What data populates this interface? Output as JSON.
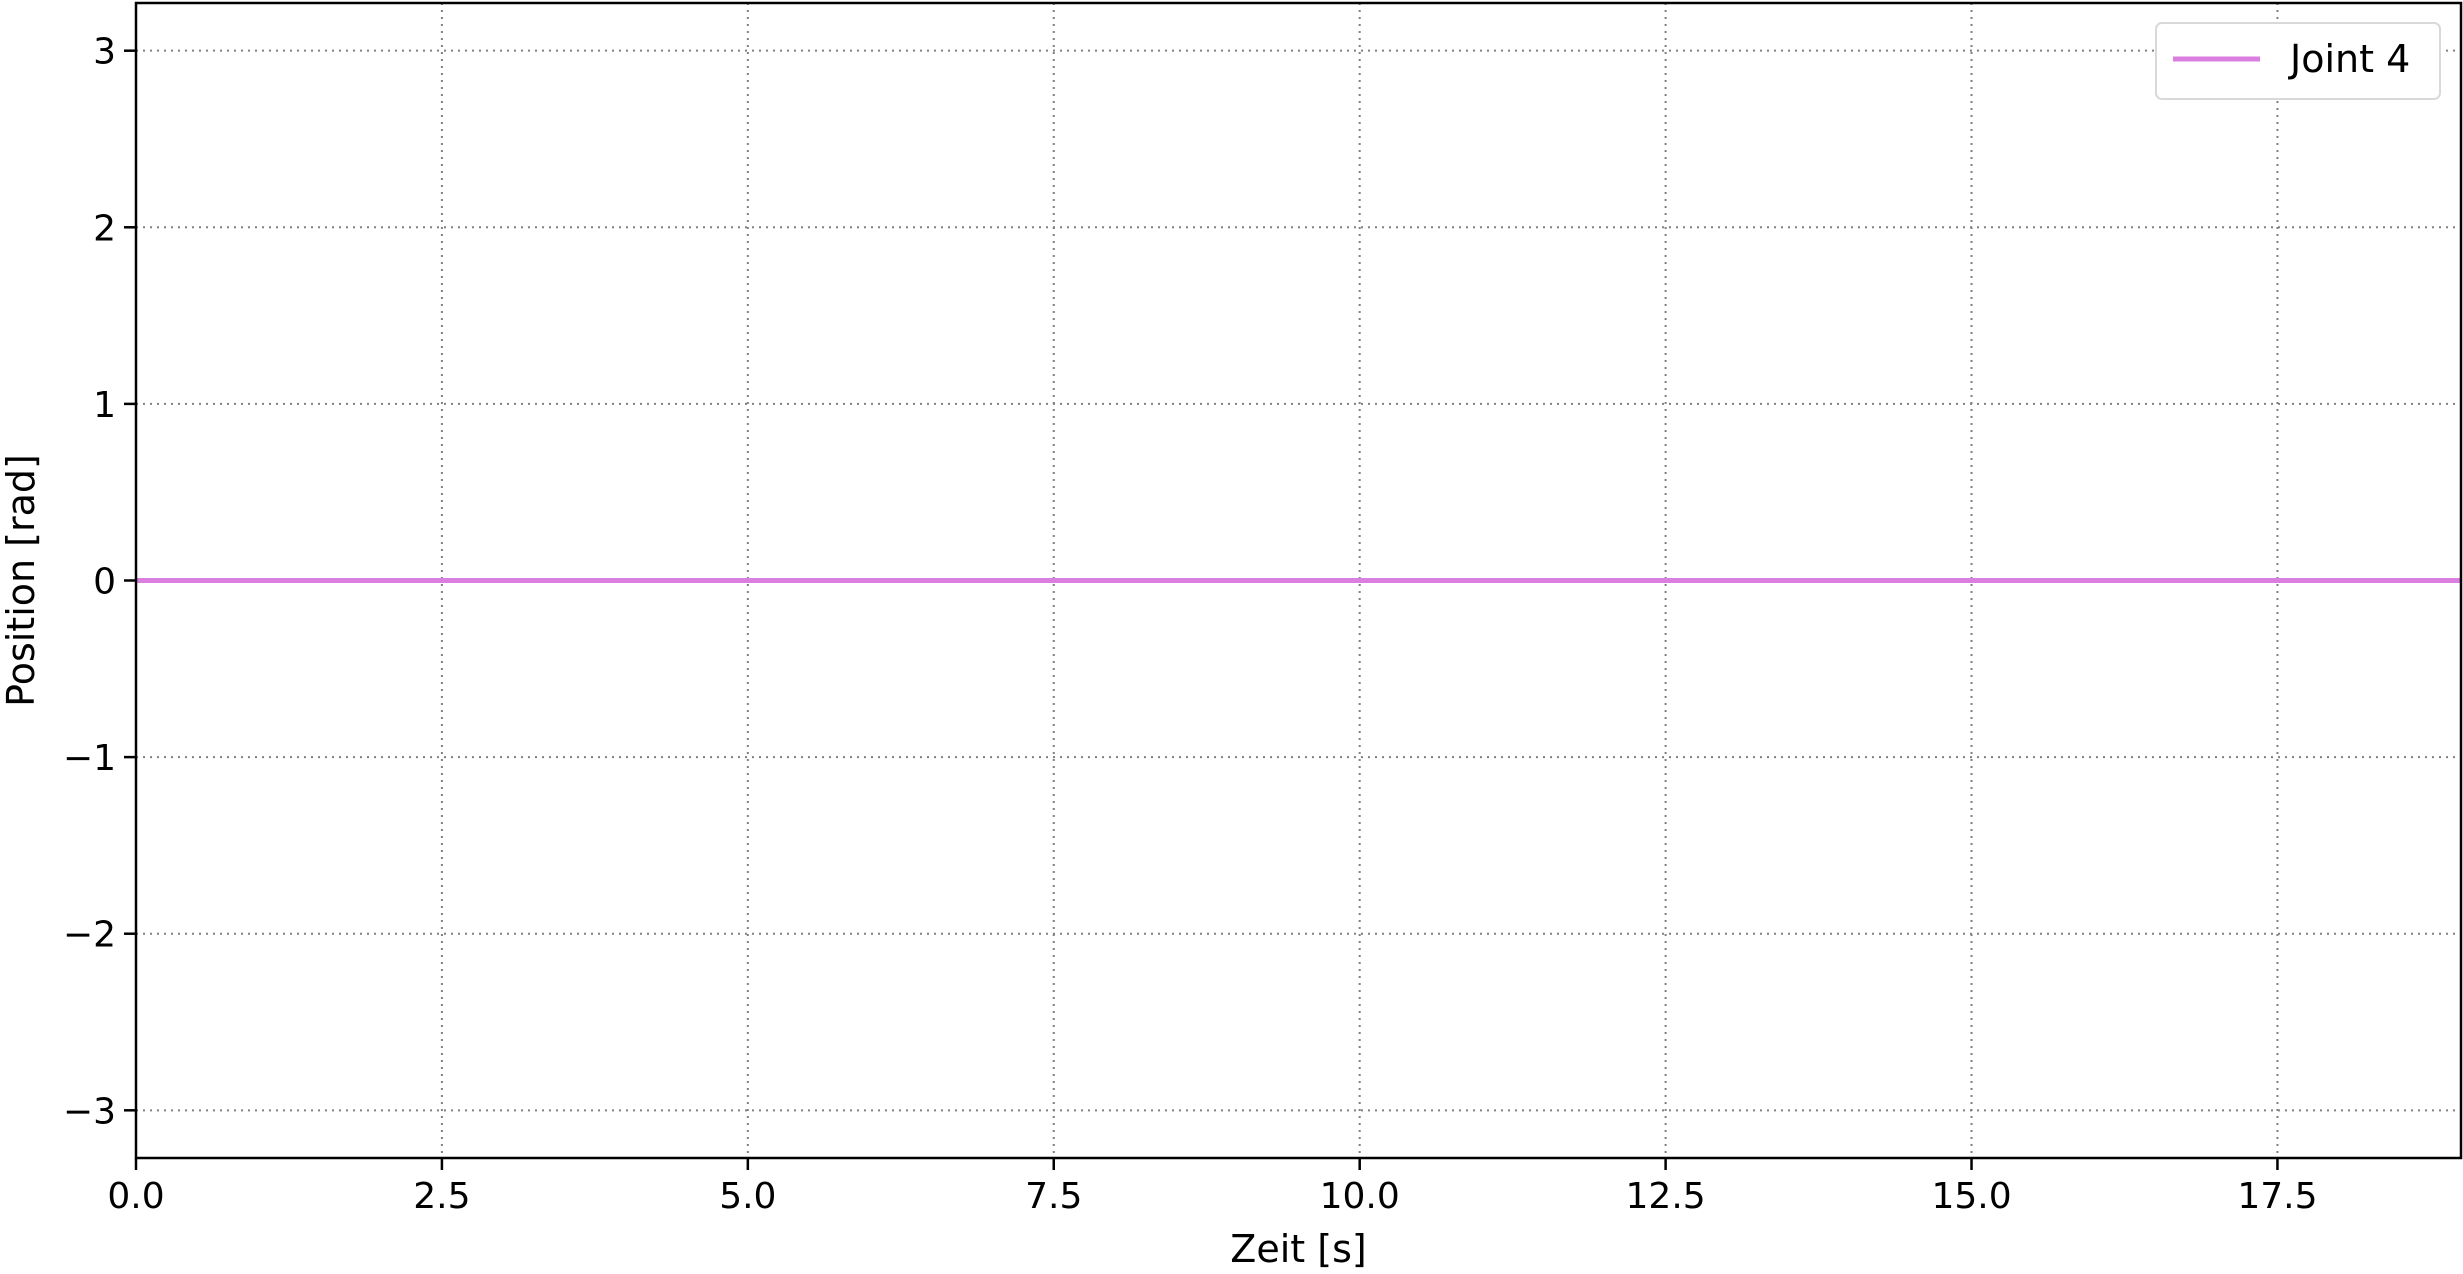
{
  "chart_data": {
    "type": "line",
    "title": "",
    "xlabel": "Zeit [s]",
    "ylabel": "Position [rad]",
    "xlim": [
      0,
      19
    ],
    "ylim": [
      -3.27,
      3.27
    ],
    "x_ticks": [
      0.0,
      2.5,
      5.0,
      7.5,
      10.0,
      12.5,
      15.0,
      17.5
    ],
    "x_tick_labels": [
      "0.0",
      "2.5",
      "5.0",
      "7.5",
      "10.0",
      "12.5",
      "15.0",
      "17.5"
    ],
    "y_ticks": [
      -3,
      -2,
      -1,
      0,
      1,
      2,
      3
    ],
    "y_tick_labels": [
      "−3",
      "−2",
      "−1",
      "0",
      "1",
      "2",
      "3"
    ],
    "grid": true,
    "grid_style": "dotted",
    "legend_position": "top-right",
    "series": [
      {
        "name": "Joint 4",
        "color": "#da7fe0",
        "x": [
          0,
          19
        ],
        "y": [
          0,
          0
        ]
      }
    ]
  }
}
